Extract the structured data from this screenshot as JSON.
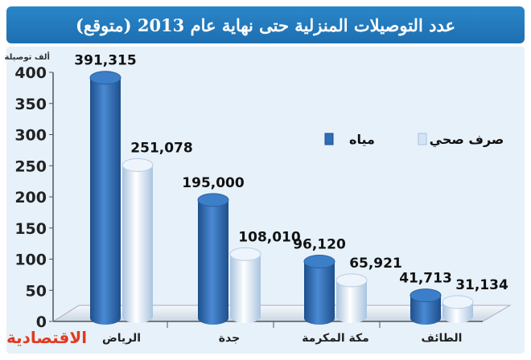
{
  "title": "عدد التوصيلات المنزلية حتى نهاية عام 2013 (متوقع)",
  "brand": "الاقتصادية",
  "colors": {
    "title_bg": "#1d6fb0",
    "water": "#2f6db5",
    "sewage": "#d4e4f4",
    "panel_bg": "#e7f1fa",
    "brand": "#e03a1e"
  },
  "chart_data": {
    "type": "bar",
    "title": "عدد التوصيلات المنزلية حتى نهاية عام 2013 (متوقع)",
    "ylabel": "ألف توصيلة",
    "xlabel": "",
    "ylim": [
      0,
      400
    ],
    "yticks": [
      0,
      50,
      100,
      150,
      200,
      250,
      300,
      350,
      400
    ],
    "categories": [
      "الرياض",
      "جدة",
      "مكة المكرمة",
      "الطائف"
    ],
    "series": [
      {
        "name": "مياه",
        "values": [
          391.315,
          195.0,
          96.12,
          41.713
        ],
        "labels": [
          "391,315",
          "195,000",
          "96,120",
          "41,713"
        ]
      },
      {
        "name": "صرف صحي",
        "values": [
          251.078,
          108.01,
          65.921,
          31.134
        ],
        "labels": [
          "251,078",
          "108,010",
          "65,921",
          "31,134"
        ]
      }
    ],
    "legend": "top-right",
    "grid": false
  }
}
